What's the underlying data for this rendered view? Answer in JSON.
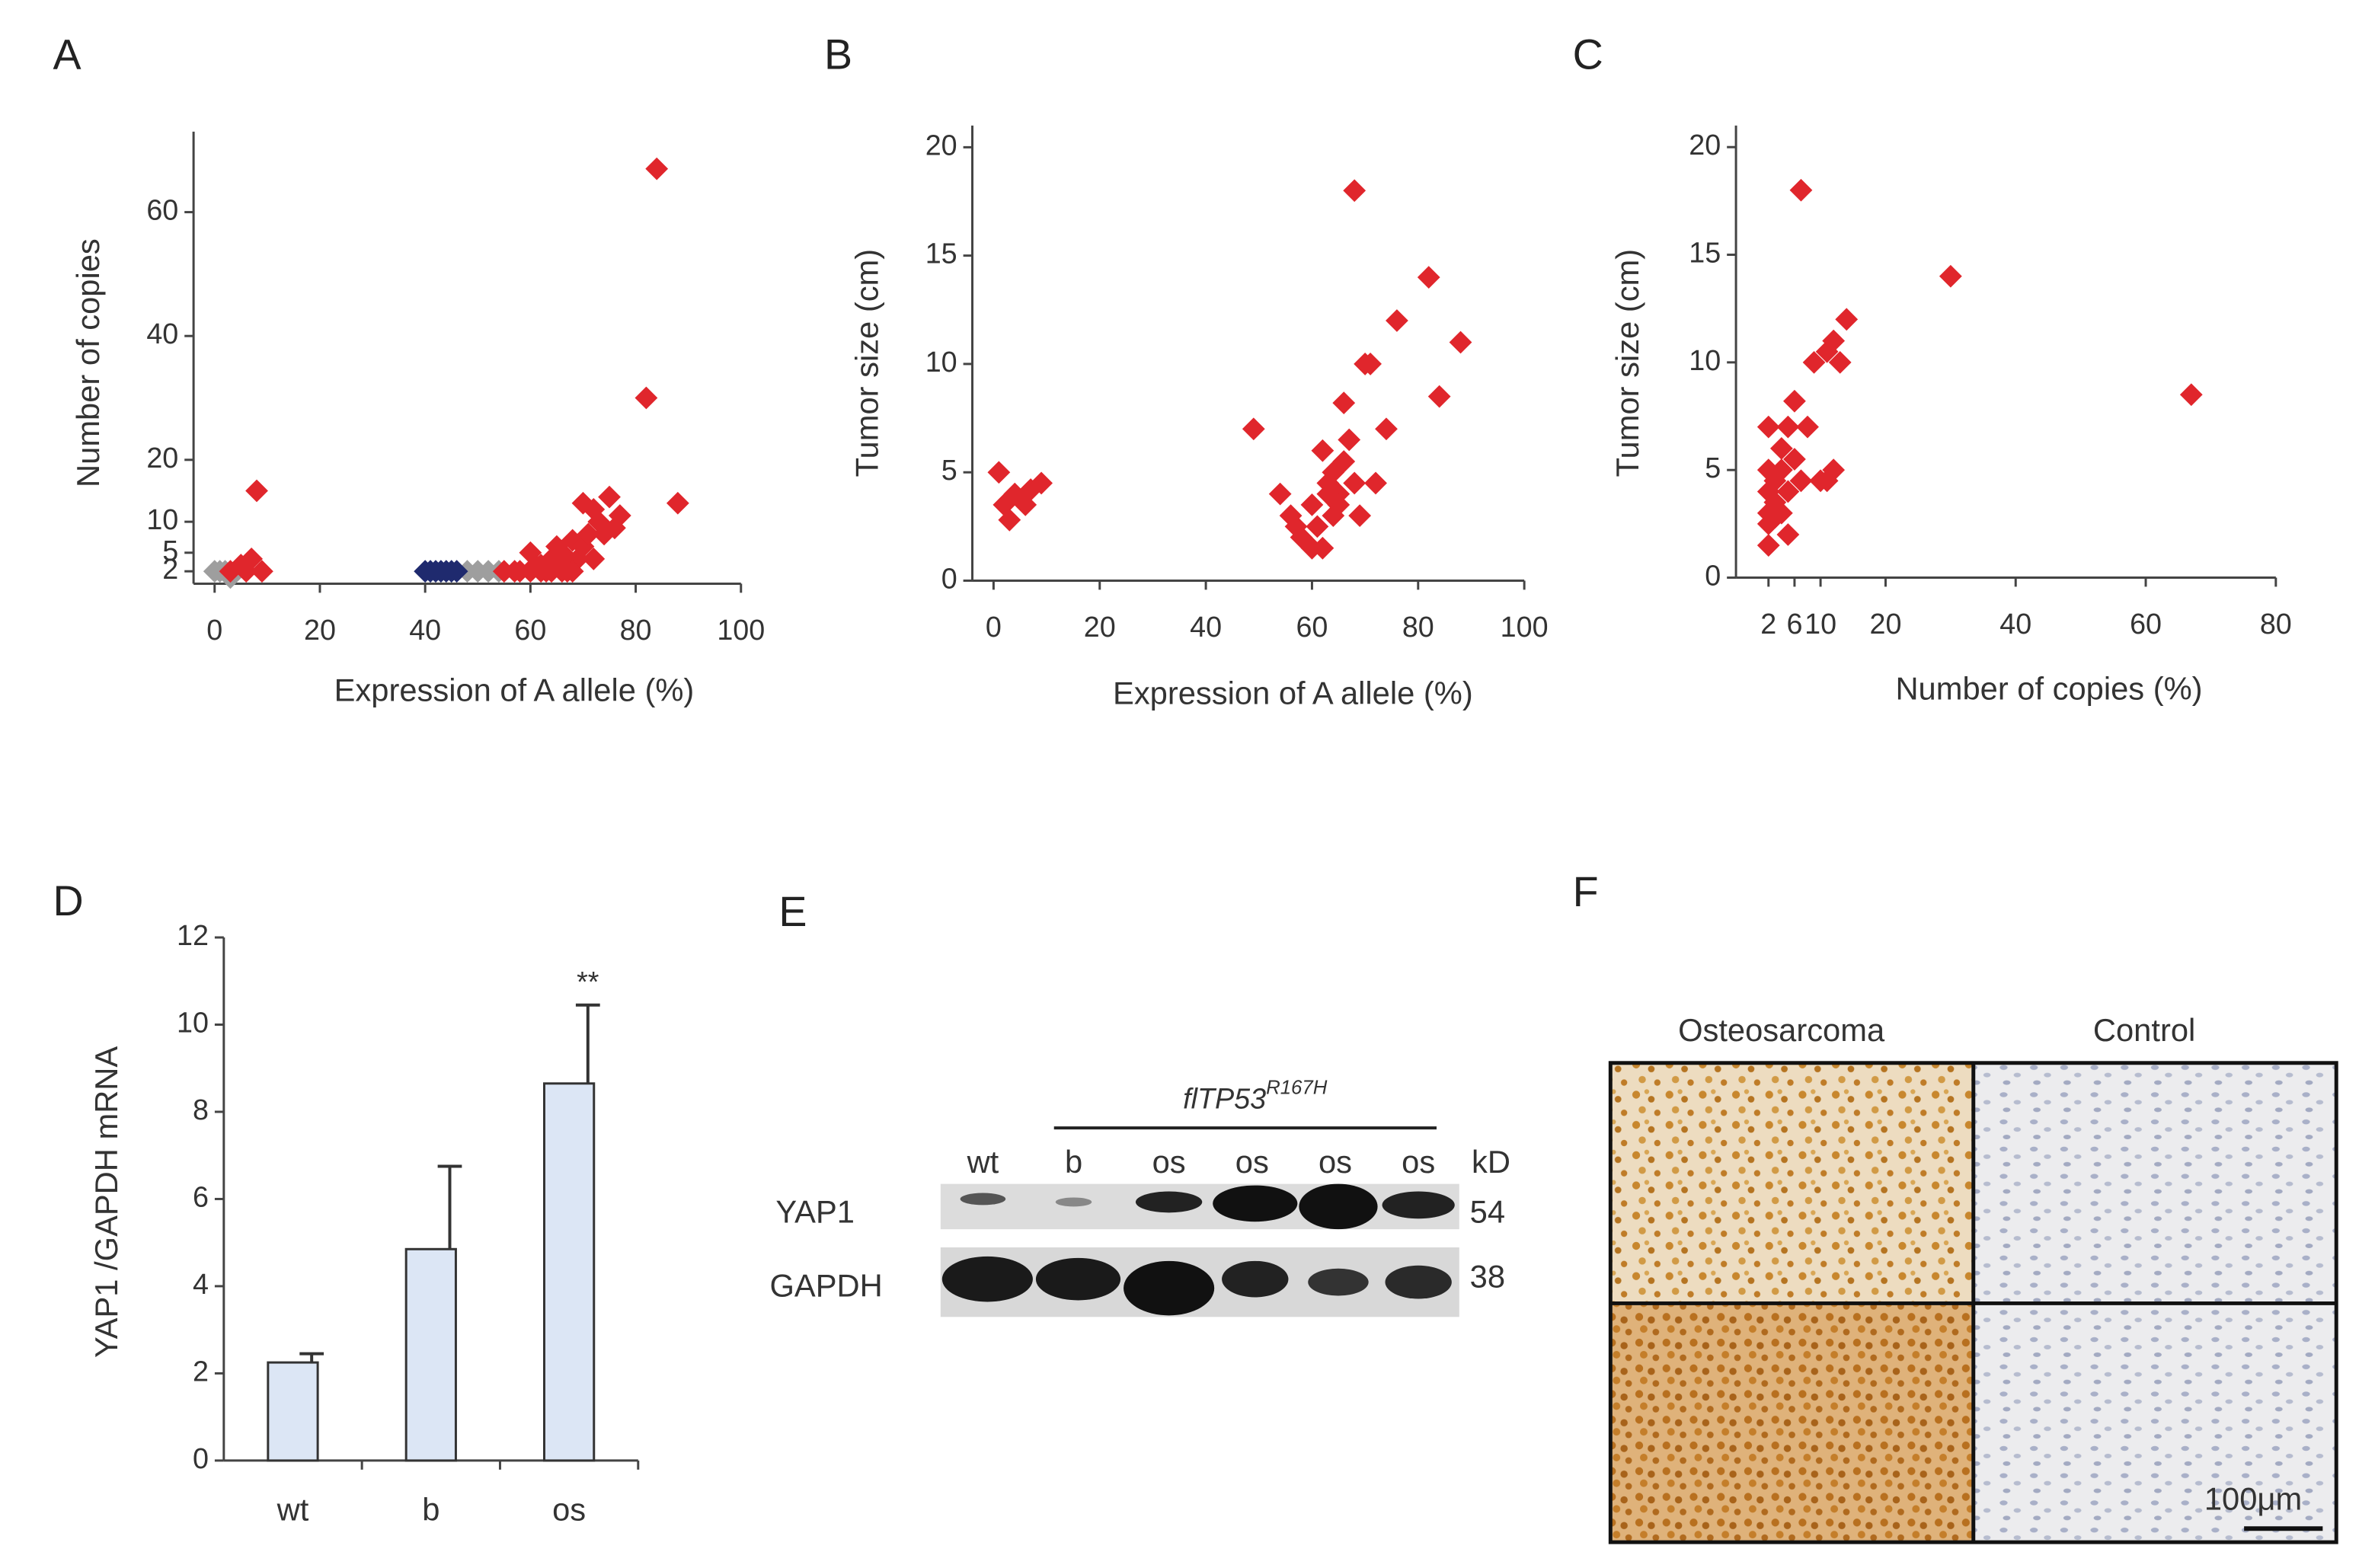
{
  "chart_data": [
    {
      "label": "A",
      "type": "scatter",
      "xlabel": "Expression of A allele (%)",
      "ylabel": "Number of copies",
      "xlim": [
        -4,
        100
      ],
      "ylim": [
        0,
        73
      ],
      "xticks": [
        0,
        20,
        40,
        60,
        80,
        100
      ],
      "yticks": [
        2,
        5,
        10,
        20,
        40,
        60
      ],
      "series": [
        {
          "color": "#9e9e9e",
          "x": [
            0,
            1,
            2,
            3,
            48,
            50,
            52,
            54
          ],
          "values": [
            2,
            2,
            2,
            1,
            2,
            2,
            2,
            2
          ]
        },
        {
          "color": "#1f2a6e",
          "x": [
            40,
            41,
            42,
            43,
            44,
            45,
            46
          ],
          "values": [
            2,
            2,
            2,
            2,
            2,
            2,
            2
          ]
        },
        {
          "color": "#e0262c",
          "x": [
            8,
            84,
            82,
            88,
            7,
            5,
            9,
            3,
            6,
            70,
            72,
            75,
            73,
            74,
            68,
            65,
            60,
            62,
            64,
            66,
            67,
            69,
            70,
            71,
            58,
            60,
            62,
            64,
            66,
            68,
            55,
            57,
            63,
            61,
            67,
            72,
            76,
            77
          ],
          "values": [
            15,
            67,
            30,
            13,
            4,
            3,
            2,
            2,
            2,
            13,
            12,
            14,
            10,
            8,
            7,
            6,
            5,
            3,
            4,
            5,
            3,
            4,
            6,
            8,
            2,
            2,
            2,
            2,
            2,
            2,
            2,
            2,
            2,
            3,
            2,
            4,
            9,
            11
          ]
        }
      ]
    },
    {
      "label": "B",
      "type": "scatter",
      "xlabel": "Expression of A allele (%)",
      "ylabel": "Tumor size (cm)",
      "xlim": [
        -4,
        100
      ],
      "ylim": [
        0,
        21
      ],
      "xticks": [
        0,
        20,
        40,
        60,
        80,
        100
      ],
      "yticks": [
        0,
        5,
        10,
        15,
        20
      ],
      "series": [
        {
          "color": "#e0262c",
          "x": [
            1,
            2,
            3,
            4,
            6,
            7,
            9,
            49,
            54,
            56,
            57,
            58,
            60,
            60,
            62,
            62,
            63,
            64,
            64,
            65,
            66,
            66,
            67,
            68,
            68,
            69,
            70,
            71,
            72,
            74,
            76,
            82,
            84,
            88,
            63,
            65,
            61
          ],
          "values": [
            5,
            3.5,
            2.8,
            4,
            3.5,
            4.2,
            4.5,
            7,
            4,
            3,
            2.5,
            2,
            1.5,
            3.5,
            6,
            1.5,
            4.5,
            3,
            5,
            4,
            5.5,
            8.2,
            6.5,
            4.5,
            18,
            3,
            10,
            10,
            4.5,
            7,
            12,
            14,
            8.5,
            11,
            4,
            3.5,
            2.5
          ]
        }
      ]
    },
    {
      "label": "C",
      "type": "scatter",
      "xlabel": "Number of copies (%)",
      "ylabel": "Tumor size (cm)",
      "xlim": [
        -3,
        80
      ],
      "ylim": [
        0,
        21
      ],
      "xticks": [
        2,
        6,
        10,
        20,
        40,
        60,
        80
      ],
      "yticks": [
        0,
        5,
        10,
        15,
        20
      ],
      "series": [
        {
          "color": "#e0262c",
          "x": [
            2,
            2,
            2,
            2,
            2,
            2,
            3,
            3,
            4,
            4,
            4,
            5,
            5,
            6,
            6,
            7,
            7,
            8,
            9,
            10,
            11,
            12,
            12,
            13,
            14,
            30,
            67,
            11,
            3,
            5
          ],
          "values": [
            7,
            5,
            4,
            3,
            2.5,
            1.5,
            4.5,
            3.5,
            6,
            5,
            3,
            4,
            7,
            5.5,
            8.2,
            4.5,
            18,
            7,
            10,
            4.5,
            10.5,
            11,
            5,
            10,
            12,
            14,
            8.5,
            4.5,
            2.8,
            2
          ]
        }
      ]
    },
    {
      "label": "D",
      "type": "bar",
      "ylabel": "YAP1 /GAPDH mRNA",
      "categories": [
        "wt",
        "b",
        "os"
      ],
      "values": [
        2.25,
        4.85,
        8.65
      ],
      "errors": [
        0.2,
        1.9,
        1.8
      ],
      "color": "#dce6f5",
      "annotation": "**",
      "ylim": [
        0,
        12
      ],
      "yticks": [
        0,
        2,
        4,
        6,
        8,
        10,
        12
      ]
    }
  ],
  "blot": {
    "label": "E",
    "header": "flTP53",
    "header_sup": "R167H",
    "lanes": [
      "wt",
      "b",
      "os",
      "os",
      "os",
      "os"
    ],
    "unit": "kD",
    "rows": [
      {
        "name": "YAP1",
        "size": "54"
      },
      {
        "name": "GAPDH",
        "size": "38"
      }
    ]
  },
  "histology": {
    "label": "F",
    "columns": [
      "Osteosarcoma",
      "Control"
    ],
    "scale": "100μm"
  }
}
